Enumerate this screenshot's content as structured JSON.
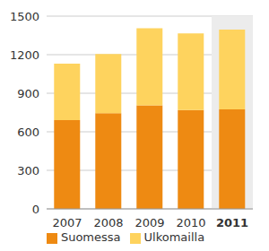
{
  "chart_data": {
    "type": "bar",
    "stacked": true,
    "categories": [
      "2007",
      "2008",
      "2009",
      "2010",
      "2011"
    ],
    "series": [
      {
        "name": "Suomessa",
        "color": "#ee8a12",
        "values": [
          690,
          745,
          805,
          770,
          775
        ]
      },
      {
        "name": "Ulkomailla",
        "color": "#fed35e",
        "values": [
          440,
          460,
          600,
          595,
          620
        ]
      }
    ],
    "ylim": [
      0,
      1500
    ],
    "yticks": [
      0,
      300,
      600,
      900,
      1200,
      1500
    ],
    "grid": true,
    "legend": "bottom"
  }
}
